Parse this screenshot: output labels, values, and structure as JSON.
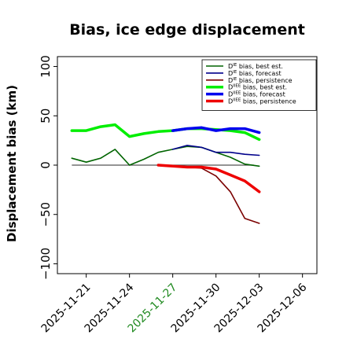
{
  "chart_data": {
    "type": "line",
    "title": "Bias, ice edge displacement",
    "xlabel": "",
    "ylabel": "Displacement bias (km)",
    "xlim": [
      "2025-11-19",
      "2025-12-07"
    ],
    "ylim": [
      -110,
      110
    ],
    "yticks": [
      -100,
      -50,
      0,
      50,
      100
    ],
    "xticks": [
      "2025-11-21",
      "2025-11-24",
      "2025-11-27",
      "2025-11-30",
      "2025-12-03",
      "2025-12-06"
    ],
    "highlight_tick": "2025-11-27",
    "highlight_color": "#228b22",
    "zero_line": true,
    "legend_position": "top-right",
    "series": [
      {
        "name": "D^IE bias, best est.",
        "legend_main": "D",
        "legend_sup": "IE",
        "legend_rest": " bias, best est.",
        "color": "#006400",
        "width": 1.6,
        "x": [
          "2025-11-20",
          "2025-11-21",
          "2025-11-22",
          "2025-11-23",
          "2025-11-24",
          "2025-11-25",
          "2025-11-26",
          "2025-11-27",
          "2025-11-28",
          "2025-11-29",
          "2025-11-30",
          "2025-12-01",
          "2025-12-02",
          "2025-12-03"
        ],
        "values": [
          7,
          3,
          7,
          16,
          0,
          6,
          13,
          16,
          19,
          18,
          13,
          8,
          1,
          -1
        ]
      },
      {
        "name": "D^IE bias, forecast",
        "legend_main": "D",
        "legend_sup": "IE",
        "legend_rest": " bias, forecast",
        "color": "#00008b",
        "width": 1.6,
        "x": [
          "2025-11-27",
          "2025-11-28",
          "2025-11-29",
          "2025-11-30",
          "2025-12-01",
          "2025-12-02",
          "2025-12-03"
        ],
        "values": [
          16,
          20,
          18,
          13,
          13,
          11,
          10
        ]
      },
      {
        "name": "D^IE bias, persistence",
        "legend_main": "D",
        "legend_sup": "IE",
        "legend_rest": " bias, persistence",
        "color": "#7b0000",
        "width": 1.6,
        "x": [
          "2025-11-26",
          "2025-11-27",
          "2025-11-28",
          "2025-11-29",
          "2025-11-30",
          "2025-12-01",
          "2025-12-02",
          "2025-12-03"
        ],
        "values": [
          0,
          -1,
          -2,
          -3,
          -11,
          -27,
          -54,
          -59
        ]
      },
      {
        "name": "D^IIEE bias, best est.",
        "legend_main": "D",
        "legend_sup": "IIEE",
        "legend_rest": " bias, best est.",
        "color": "#00ee00",
        "width": 3.5,
        "x": [
          "2025-11-20",
          "2025-11-21",
          "2025-11-22",
          "2025-11-23",
          "2025-11-24",
          "2025-11-25",
          "2025-11-26",
          "2025-11-27",
          "2025-11-28",
          "2025-11-29",
          "2025-11-30",
          "2025-12-01",
          "2025-12-02",
          "2025-12-03"
        ],
        "values": [
          35,
          35,
          39,
          41,
          29,
          32,
          34,
          35,
          37,
          37,
          36,
          35,
          33,
          26
        ]
      },
      {
        "name": "D^IIEE bias, forecast",
        "legend_main": "D",
        "legend_sup": "IIEE",
        "legend_rest": " bias, forecast",
        "color": "#0000ee",
        "width": 3.5,
        "x": [
          "2025-11-27",
          "2025-11-28",
          "2025-11-29",
          "2025-11-30",
          "2025-12-01",
          "2025-12-02",
          "2025-12-03"
        ],
        "values": [
          35,
          37,
          38,
          35,
          37,
          37,
          33
        ]
      },
      {
        "name": "D^IIEE bias, persistence",
        "legend_main": "D",
        "legend_sup": "IIEE",
        "legend_rest": " bias, persistence",
        "color": "#ee0000",
        "width": 3.5,
        "x": [
          "2025-11-26",
          "2025-11-27",
          "2025-11-28",
          "2025-11-29",
          "2025-11-30",
          "2025-12-01",
          "2025-12-02",
          "2025-12-03"
        ],
        "values": [
          0,
          -1,
          -2,
          -2,
          -4,
          -10,
          -16,
          -27
        ]
      }
    ]
  }
}
